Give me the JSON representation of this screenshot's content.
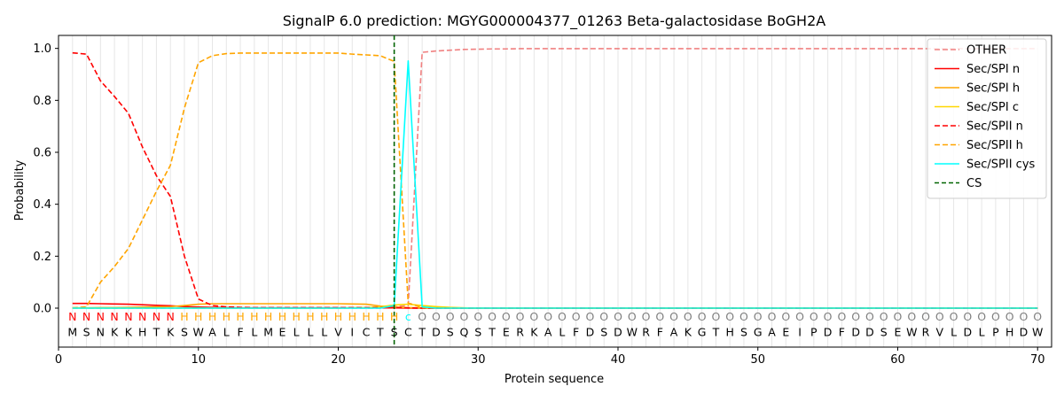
{
  "chart_data": {
    "type": "line",
    "title": "SignalP 6.0 prediction: MGYG000004377_01263 Beta-galactosidase BoGH2A",
    "xlabel": "Protein sequence",
    "ylabel": "Probability",
    "xlim": [
      0,
      71
    ],
    "ylim": [
      -0.15,
      1.05
    ],
    "xticks": [
      0,
      10,
      20,
      30,
      40,
      50,
      60,
      70
    ],
    "yticks": [
      0.0,
      0.2,
      0.4,
      0.6,
      0.8,
      1.0
    ],
    "ytick_labels": [
      "0.0",
      "0.2",
      "0.4",
      "0.6",
      "0.8",
      "1.0"
    ],
    "grid": "vertical lines at each residue",
    "legend_position": "top-right",
    "cs_position": 24,
    "sequence": [
      "M",
      "S",
      "N",
      "K",
      "K",
      "H",
      "T",
      "K",
      "S",
      "W",
      "A",
      "L",
      "F",
      "L",
      "M",
      "E",
      "L",
      "L",
      "L",
      "V",
      "I",
      "C",
      "T",
      "S",
      "C",
      "T",
      "D",
      "S",
      "Q",
      "S",
      "T",
      "E",
      "R",
      "K",
      "A",
      "L",
      "F",
      "D",
      "S",
      "D",
      "W",
      "R",
      "F",
      "A",
      "K",
      "G",
      "T",
      "H",
      "S",
      "G",
      "A",
      "E",
      "I",
      "P",
      "D",
      "F",
      "D",
      "D",
      "S",
      "E",
      "W",
      "R",
      "V",
      "L",
      "D",
      "L",
      "P",
      "H",
      "D",
      "W"
    ],
    "region_labels": [
      "N",
      "N",
      "N",
      "N",
      "N",
      "N",
      "N",
      "N",
      "H",
      "H",
      "H",
      "H",
      "H",
      "H",
      "H",
      "H",
      "H",
      "H",
      "H",
      "H",
      "H",
      "H",
      "H",
      "H",
      "c",
      "O",
      "O",
      "O",
      "O",
      "O",
      "O",
      "O",
      "O",
      "O",
      "O",
      "O",
      "O",
      "O",
      "O",
      "O",
      "O",
      "O",
      "O",
      "O",
      "O",
      "O",
      "O",
      "O",
      "O",
      "O",
      "O",
      "O",
      "O",
      "O",
      "O",
      "O",
      "O",
      "O",
      "O",
      "O",
      "O",
      "O",
      "O",
      "O",
      "O",
      "O",
      "O",
      "O",
      "O",
      "O"
    ],
    "region_colors": {
      "N": "#ff0000",
      "H": "#ffa500",
      "c": "#00ffff",
      "O": "#808080"
    },
    "series": [
      {
        "name": "OTHER",
        "color": "#f08080",
        "dash": "6,3",
        "values": [
          0,
          0,
          0,
          0,
          0,
          0,
          0,
          0,
          0,
          0,
          0,
          0,
          0,
          0,
          0,
          0,
          0,
          0,
          0,
          0,
          0,
          0,
          0,
          0.005,
          0.01,
          0.985,
          0.99,
          0.993,
          0.996,
          0.997,
          0.998,
          0.998,
          0.999,
          0.999,
          0.999,
          0.999,
          0.999,
          0.999,
          0.999,
          0.999,
          0.999,
          0.999,
          0.999,
          0.999,
          0.999,
          0.999,
          0.999,
          0.999,
          0.999,
          0.999,
          0.999,
          0.999,
          0.999,
          0.999,
          0.999,
          0.999,
          0.999,
          0.999,
          0.999,
          0.999,
          0.999,
          0.999,
          0.999,
          0.999,
          0.999,
          0.999,
          0.999,
          0.999,
          0.999,
          0.999
        ]
      },
      {
        "name": "Sec/SPI n",
        "color": "#ff0000",
        "dash": "",
        "values": [
          0.018,
          0.018,
          0.017,
          0.016,
          0.015,
          0.013,
          0.011,
          0.009,
          0.006,
          0.004,
          0.003,
          0.002,
          0.001,
          0.001,
          0.001,
          0.001,
          0.001,
          0.001,
          0.001,
          0.001,
          0.001,
          0.001,
          0.001,
          0.001,
          0,
          0,
          0,
          0,
          0,
          0,
          0,
          0,
          0,
          0,
          0,
          0,
          0,
          0,
          0,
          0,
          0,
          0,
          0,
          0,
          0,
          0,
          0,
          0,
          0,
          0,
          0,
          0,
          0,
          0,
          0,
          0,
          0,
          0,
          0,
          0,
          0,
          0,
          0,
          0,
          0,
          0,
          0,
          0,
          0,
          0
        ]
      },
      {
        "name": "Sec/SPI h",
        "color": "#ffa500",
        "dash": "",
        "values": [
          0.001,
          0.001,
          0.002,
          0.002,
          0.003,
          0.004,
          0.005,
          0.006,
          0.01,
          0.015,
          0.017,
          0.017,
          0.017,
          0.017,
          0.017,
          0.017,
          0.017,
          0.017,
          0.017,
          0.017,
          0.016,
          0.015,
          0.008,
          0.004,
          0.002,
          0.001,
          0,
          0,
          0,
          0,
          0,
          0,
          0,
          0,
          0,
          0,
          0,
          0,
          0,
          0,
          0,
          0,
          0,
          0,
          0,
          0,
          0,
          0,
          0,
          0,
          0,
          0,
          0,
          0,
          0,
          0,
          0,
          0,
          0,
          0,
          0,
          0,
          0,
          0,
          0,
          0,
          0,
          0,
          0,
          0
        ]
      },
      {
        "name": "Sec/SPI c",
        "color": "#ffd700",
        "dash": "",
        "values": [
          0,
          0,
          0,
          0,
          0,
          0,
          0,
          0,
          0,
          0,
          0,
          0,
          0,
          0,
          0,
          0,
          0,
          0,
          0,
          0,
          0.001,
          0.002,
          0.005,
          0.012,
          0.015,
          0.01,
          0.006,
          0.003,
          0.001,
          0,
          0,
          0,
          0,
          0,
          0,
          0,
          0,
          0,
          0,
          0,
          0,
          0,
          0,
          0,
          0,
          0,
          0,
          0,
          0,
          0,
          0,
          0,
          0,
          0,
          0,
          0,
          0,
          0,
          0,
          0,
          0,
          0,
          0,
          0,
          0,
          0,
          0,
          0,
          0,
          0
        ]
      },
      {
        "name": "Sec/SPII n",
        "color": "#ff0000",
        "dash": "6,3",
        "values": [
          0.983,
          0.978,
          0.875,
          0.815,
          0.75,
          0.62,
          0.51,
          0.43,
          0.2,
          0.035,
          0.01,
          0.005,
          0.003,
          0.002,
          0.002,
          0.002,
          0.002,
          0.002,
          0.002,
          0.002,
          0.002,
          0.002,
          0.002,
          0.002,
          0.001,
          0,
          0,
          0,
          0,
          0,
          0,
          0,
          0,
          0,
          0,
          0,
          0,
          0,
          0,
          0,
          0,
          0,
          0,
          0,
          0,
          0,
          0,
          0,
          0,
          0,
          0,
          0,
          0,
          0,
          0,
          0,
          0,
          0,
          0,
          0,
          0,
          0,
          0,
          0,
          0,
          0,
          0,
          0,
          0,
          0
        ]
      },
      {
        "name": "Sec/SPII h",
        "color": "#ffa500",
        "dash": "6,3",
        "values": [
          0.001,
          0.005,
          0.1,
          0.16,
          0.23,
          0.34,
          0.45,
          0.55,
          0.77,
          0.945,
          0.972,
          0.98,
          0.982,
          0.982,
          0.982,
          0.982,
          0.982,
          0.982,
          0.982,
          0.982,
          0.978,
          0.975,
          0.972,
          0.95,
          0.02,
          0.002,
          0.001,
          0,
          0,
          0,
          0,
          0,
          0,
          0,
          0,
          0,
          0,
          0,
          0,
          0,
          0,
          0,
          0,
          0,
          0,
          0,
          0,
          0,
          0,
          0,
          0,
          0,
          0,
          0,
          0,
          0,
          0,
          0,
          0,
          0,
          0,
          0,
          0,
          0,
          0,
          0,
          0,
          0,
          0,
          0
        ]
      },
      {
        "name": "Sec/SPII cys",
        "color": "#00ffff",
        "dash": "",
        "values": [
          0,
          0,
          0,
          0,
          0,
          0,
          0,
          0,
          0,
          0,
          0,
          0,
          0,
          0,
          0,
          0,
          0,
          0,
          0,
          0,
          0,
          0,
          0,
          0.01,
          0.952,
          0.005,
          0,
          0,
          0,
          0,
          0,
          0,
          0,
          0,
          0,
          0,
          0,
          0,
          0,
          0,
          0,
          0,
          0,
          0,
          0,
          0,
          0,
          0,
          0,
          0,
          0,
          0,
          0,
          0,
          0,
          0,
          0,
          0,
          0,
          0,
          0,
          0,
          0,
          0,
          0,
          0,
          0,
          0,
          0,
          0
        ]
      }
    ],
    "legend": [
      {
        "name": "OTHER",
        "color": "#f08080",
        "dash": "6,3"
      },
      {
        "name": "Sec/SPI n",
        "color": "#ff0000",
        "dash": ""
      },
      {
        "name": "Sec/SPI h",
        "color": "#ffa500",
        "dash": ""
      },
      {
        "name": "Sec/SPI c",
        "color": "#ffd700",
        "dash": ""
      },
      {
        "name": "Sec/SPII n",
        "color": "#ff0000",
        "dash": "6,3"
      },
      {
        "name": "Sec/SPII h",
        "color": "#ffa500",
        "dash": "6,3"
      },
      {
        "name": "Sec/SPII cys",
        "color": "#00ffff",
        "dash": ""
      },
      {
        "name": "CS",
        "color": "#006400",
        "dash": "5,3"
      }
    ]
  }
}
